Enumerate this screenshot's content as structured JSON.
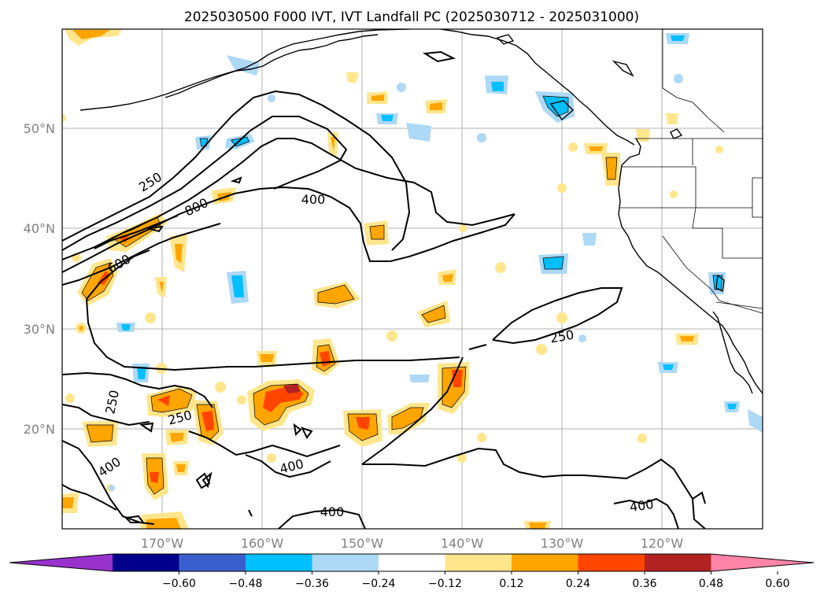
{
  "title": "2025030500 F000 IVT, IVT Landfall PC (2025030712 - 2025031000)",
  "lon_labels": [
    "170°W",
    "160°W",
    "150°W",
    "140°W",
    "130°W",
    "120°W"
  ],
  "lat_labels": [
    "50°N",
    "40°N",
    "30°N",
    "20°N"
  ],
  "colorbar": {
    "ticks": [
      "−0.60",
      "−0.48",
      "−0.36",
      "−0.24",
      "−0.12",
      "0.12",
      "0.24",
      "0.36",
      "0.48",
      "0.60"
    ],
    "colors": [
      "#9932cc",
      "#00008b",
      "#3a5fcd",
      "#00bfff",
      "#add8f6",
      "#ffffff",
      "#ffe68c",
      "#ffa500",
      "#ff4500",
      "#b22222",
      "#ff85a8"
    ]
  },
  "contour_labels": [
    "250",
    "800",
    "400",
    "600",
    "250",
    "250",
    "250",
    "400",
    "400",
    "400",
    "400"
  ]
}
